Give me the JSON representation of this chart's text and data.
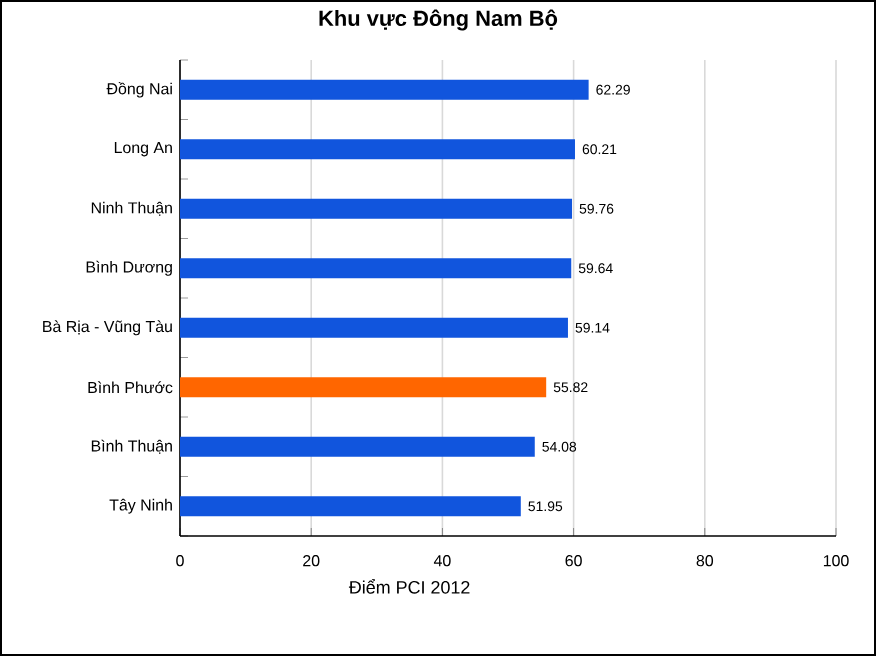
{
  "chart_data": {
    "type": "bar",
    "orientation": "horizontal",
    "title": "Khu vực Đông Nam Bộ",
    "xlabel": "Điểm PCI 2012",
    "categories": [
      "Đồng Nai",
      "Long An",
      "Ninh Thuận",
      "Bình Dương",
      "Bà Rịa - Vũng Tàu",
      "Bình Phước",
      "Bình Thuận",
      "Tây Ninh"
    ],
    "values": [
      62.29,
      60.21,
      59.76,
      59.64,
      59.14,
      55.82,
      54.08,
      51.95
    ],
    "colors": [
      "#1155dd",
      "#1155dd",
      "#1155dd",
      "#1155dd",
      "#1155dd",
      "#ff6600",
      "#1155dd",
      "#1155dd"
    ],
    "xlim": [
      0,
      100
    ],
    "xticks": [
      0,
      20,
      40,
      60,
      80,
      100
    ],
    "grid": "x",
    "data_labels": true
  }
}
